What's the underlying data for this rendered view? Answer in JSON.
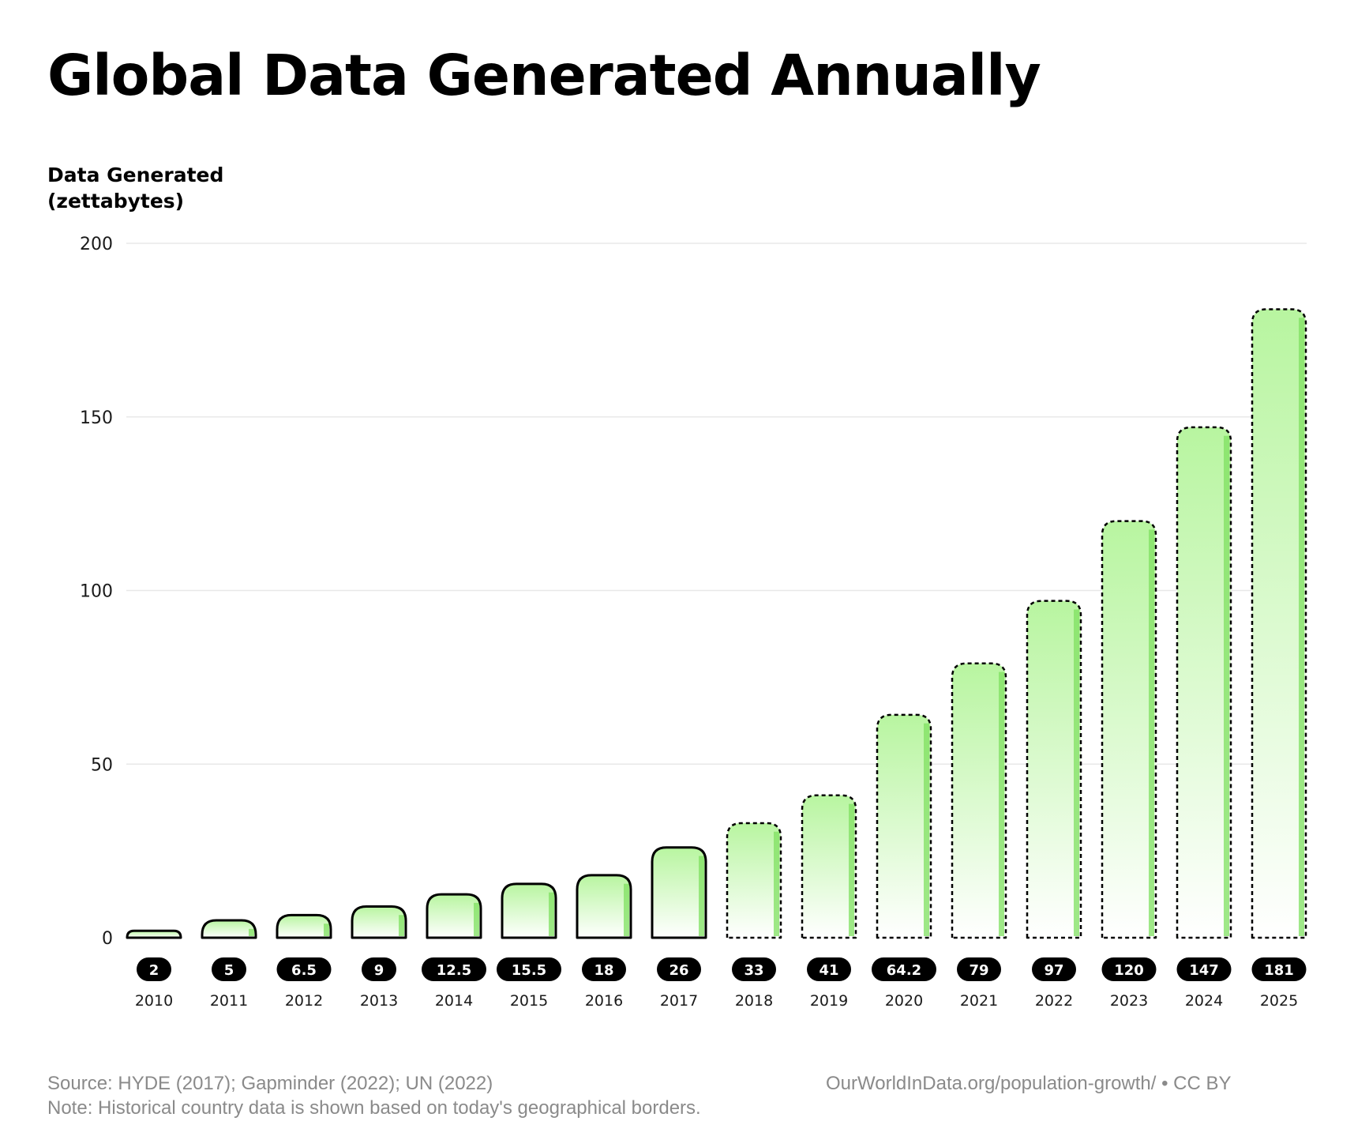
{
  "chart_data": {
    "type": "bar",
    "title": "Global Data Generated Annually",
    "ylabel_lines": [
      "Data Generated",
      "(zettabytes)"
    ],
    "xlabel": "",
    "ylim": [
      0,
      200
    ],
    "yticks": [
      0,
      50,
      100,
      150,
      200
    ],
    "grid": true,
    "legend": "none",
    "categories": [
      "2010",
      "2011",
      "2012",
      "2013",
      "2014",
      "2015",
      "2016",
      "2017",
      "2018",
      "2019",
      "2020",
      "2021",
      "2022",
      "2023",
      "2024",
      "2025"
    ],
    "values": [
      2,
      5,
      6.5,
      9,
      12.5,
      15.5,
      18,
      26,
      33,
      41,
      64.2,
      79,
      97,
      120,
      147,
      181
    ],
    "value_labels": [
      "2",
      "5",
      "6.5",
      "9",
      "12.5",
      "15.5",
      "18",
      "26",
      "33",
      "41",
      "64.2",
      "79",
      "97",
      "120",
      "147",
      "181"
    ],
    "projected_from": "2018",
    "colors": {
      "bar_top": "#b8f5a0",
      "bar_bottom": "#ffffff",
      "bar_edge": "#7fe060",
      "outline": "#000000",
      "label_bg": "#000000",
      "label_text": "#ffffff",
      "gridline": "#e8e8e8"
    }
  },
  "footer": {
    "source": "Source: HYDE (2017); Gapminder (2022); UN (2022)",
    "note": "Note: Historical country data is shown based on today's geographical borders.",
    "credit": "OurWorldInData.org/population-growth/ • CC BY"
  }
}
